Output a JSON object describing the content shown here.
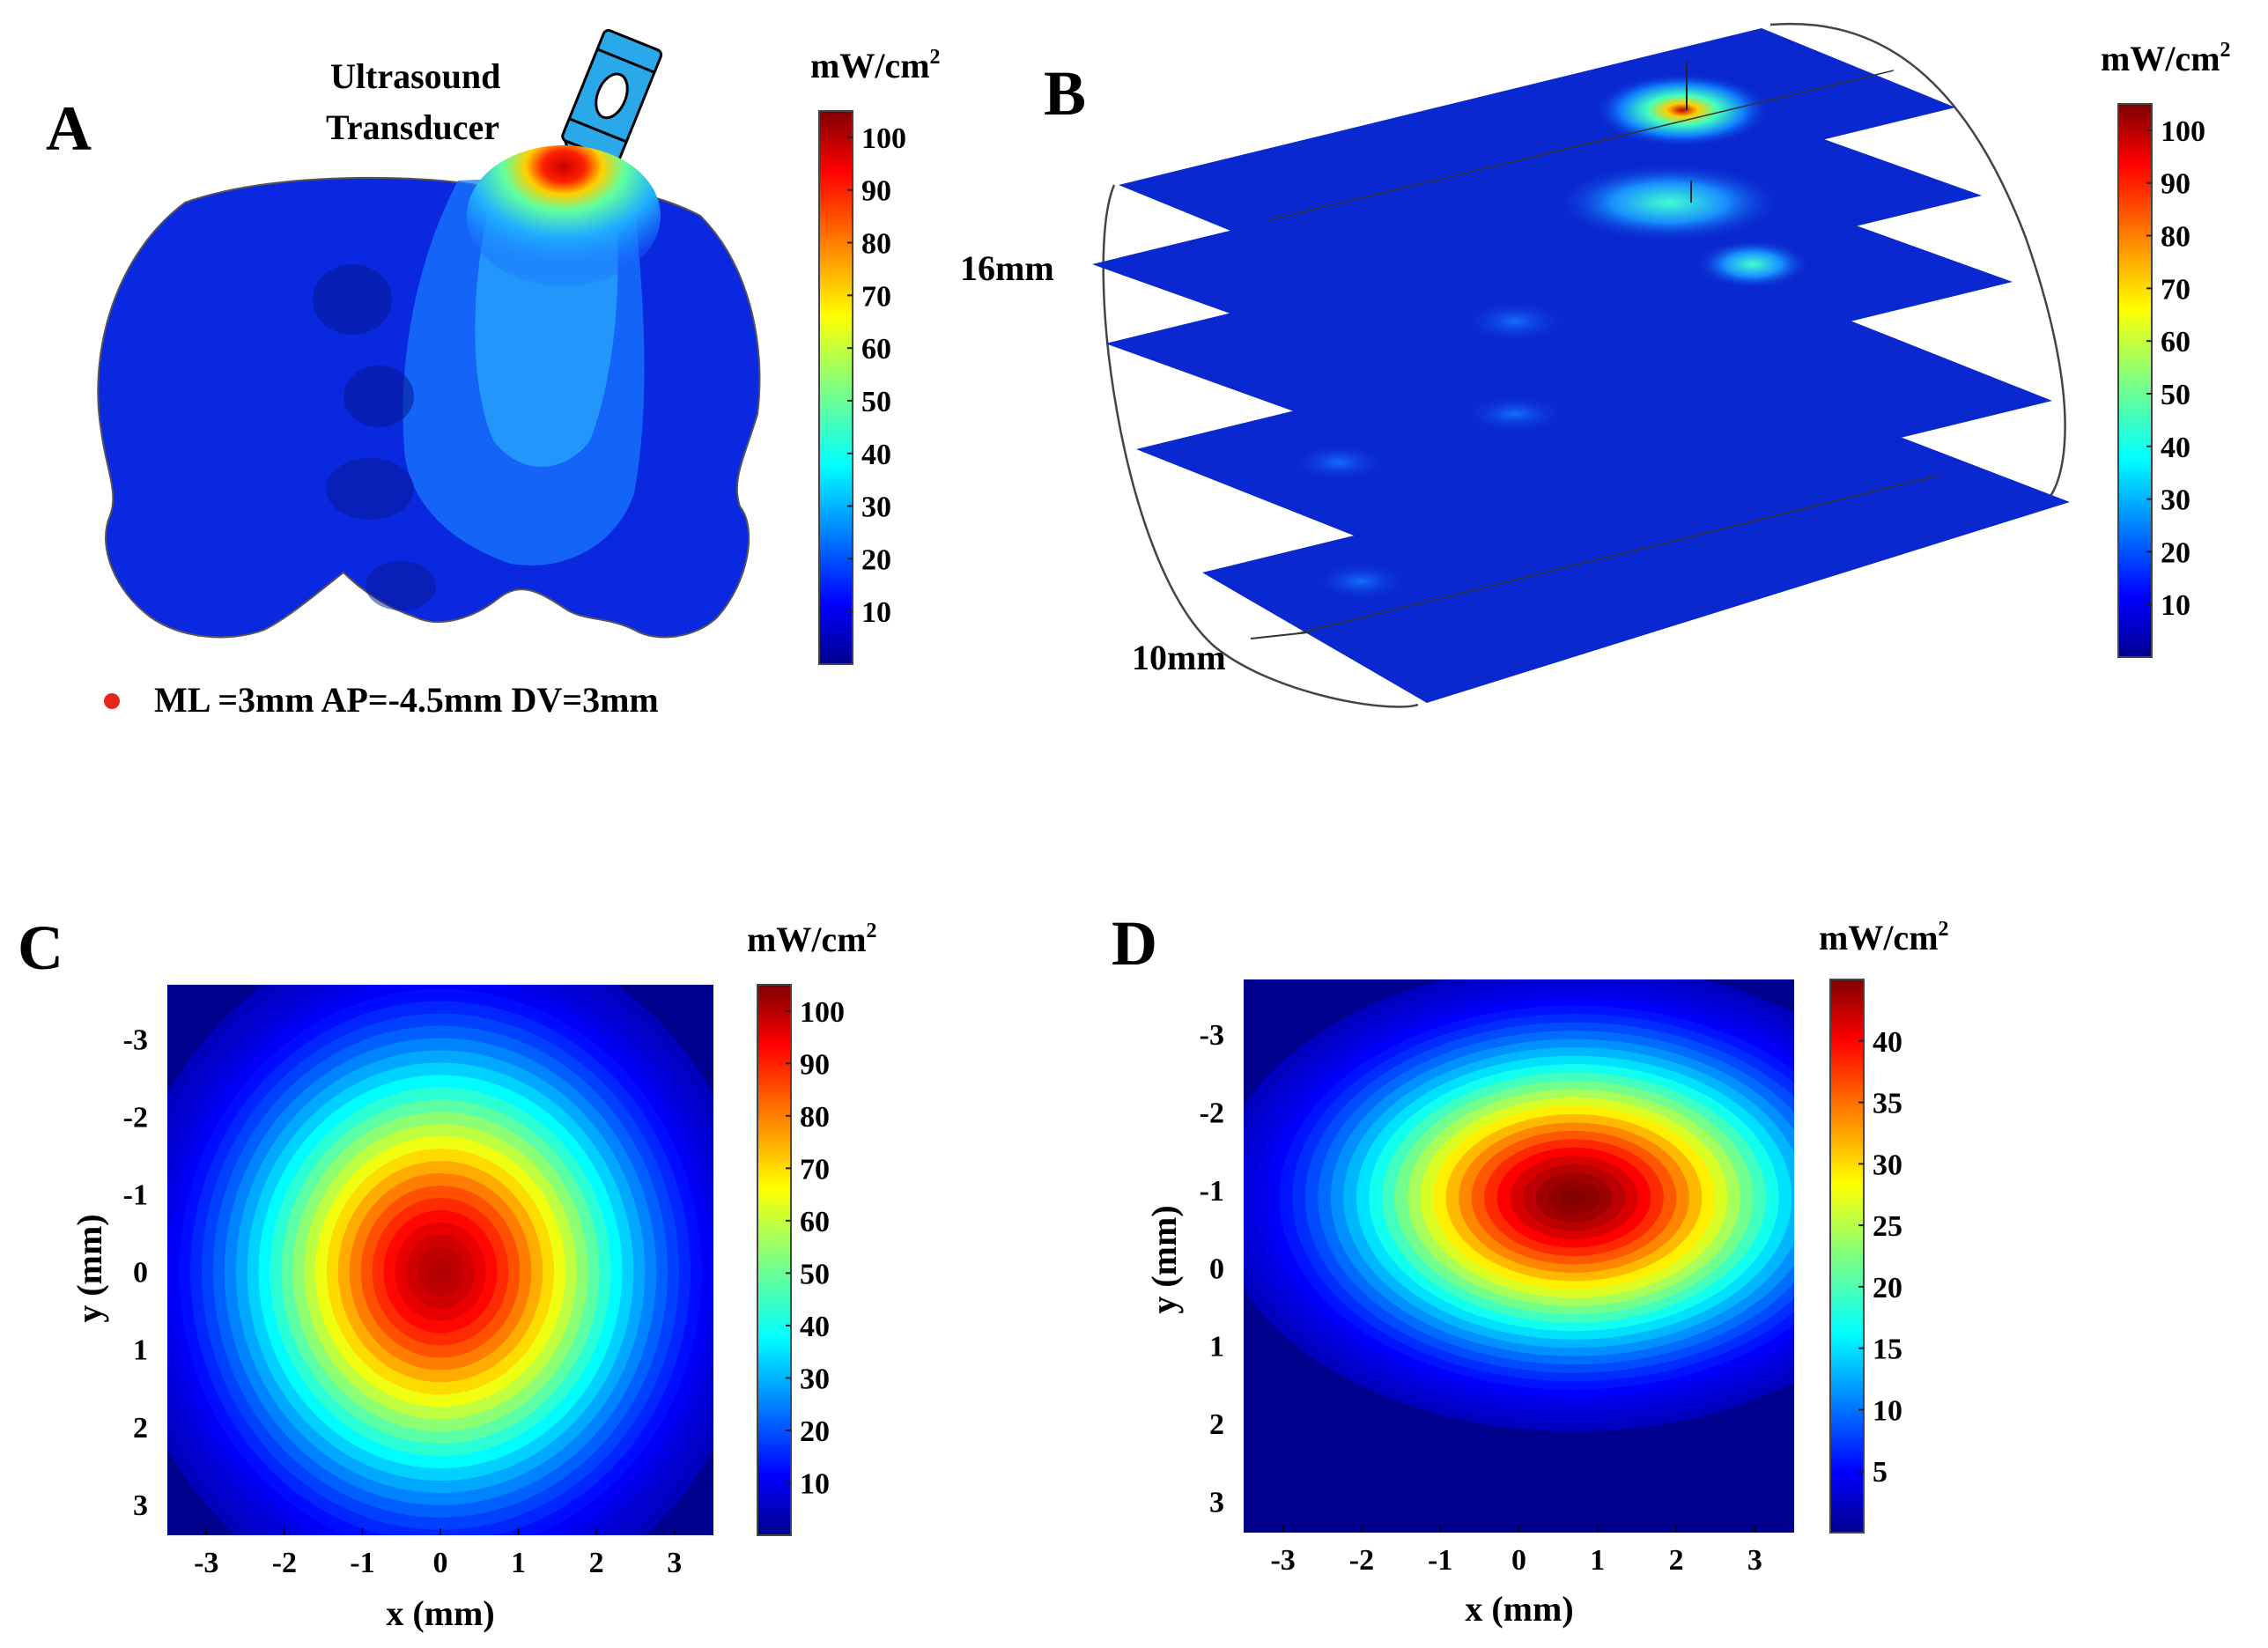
{
  "panels": {
    "A": {
      "letter": "A",
      "transducer_label": [
        "Ultrasound",
        "Transducer"
      ],
      "legend_text": "ML =3mm AP=-4.5mm DV=3mm",
      "legend_marker_color": "#e8251c",
      "transducer_color": "#2aa8ea",
      "icon": "ultrasound-transducer-icon"
    },
    "B": {
      "letter": "B",
      "dim_labels": [
        "16mm",
        "10mm"
      ]
    },
    "C": {
      "letter": "C"
    },
    "D": {
      "letter": "D"
    }
  },
  "colormap": [
    "#00008f",
    "#0000ff",
    "#0080ff",
    "#00ffff",
    "#80ff80",
    "#ffff00",
    "#ff8000",
    "#ff0000",
    "#800000"
  ],
  "chart_data": [
    {
      "id": "A",
      "type": "heatmap",
      "title": "",
      "description_hotspot": "cortex surface beneath transducer",
      "colorbar": {
        "unit": "mW/cm",
        "unit_sup": "2",
        "min": 0,
        "max": 105,
        "ticks": [
          100,
          90,
          80,
          70,
          60,
          50,
          40,
          30,
          20,
          10
        ]
      },
      "peak_value": 100
    },
    {
      "id": "B",
      "type": "heatmap",
      "title": "",
      "slices": 5,
      "colorbar": {
        "unit": "mW/cm",
        "unit_sup": "2",
        "min": 0,
        "max": 105,
        "ticks": [
          100,
          90,
          80,
          70,
          60,
          50,
          40,
          30,
          20,
          10
        ]
      },
      "slice_peaks": [
        75,
        35,
        25,
        12,
        8
      ]
    },
    {
      "id": "C",
      "type": "heatmap",
      "xlabel": "x (mm)",
      "ylabel": "y (mm)",
      "xlim": [
        -3.5,
        3.5
      ],
      "ylim": [
        -3.7,
        3.4
      ],
      "xticks": [
        -3,
        -2,
        -1,
        0,
        1,
        2,
        3
      ],
      "yticks": [
        -3,
        -2,
        -1,
        0,
        1,
        2,
        3
      ],
      "peak": {
        "x": 0,
        "y": 0,
        "value": 100
      },
      "spread_mm": {
        "sx": 1.7,
        "sy": 1.85
      },
      "colorbar": {
        "unit": "mW/cm",
        "unit_sup": "2",
        "min": 0,
        "max": 105,
        "ticks": [
          100,
          90,
          80,
          70,
          60,
          50,
          40,
          30,
          20,
          10
        ]
      }
    },
    {
      "id": "D",
      "type": "heatmap",
      "xlabel": "x (mm)",
      "ylabel": "y (mm)",
      "xlim": [
        -3.5,
        3.5
      ],
      "ylim": [
        -3.7,
        3.4
      ],
      "xticks": [
        -3,
        -2,
        -1,
        0,
        1,
        2,
        3
      ],
      "yticks": [
        -3,
        -2,
        -1,
        0,
        1,
        2,
        3
      ],
      "peak": {
        "x": 0.7,
        "y": -0.9,
        "value": 45
      },
      "spread_mm": {
        "sx": 1.9,
        "sy": 1.25
      },
      "colorbar": {
        "unit": "mW/cm",
        "unit_sup": "2",
        "min": 0,
        "max": 45,
        "ticks": [
          40,
          35,
          30,
          25,
          20,
          15,
          10,
          5
        ]
      }
    }
  ]
}
